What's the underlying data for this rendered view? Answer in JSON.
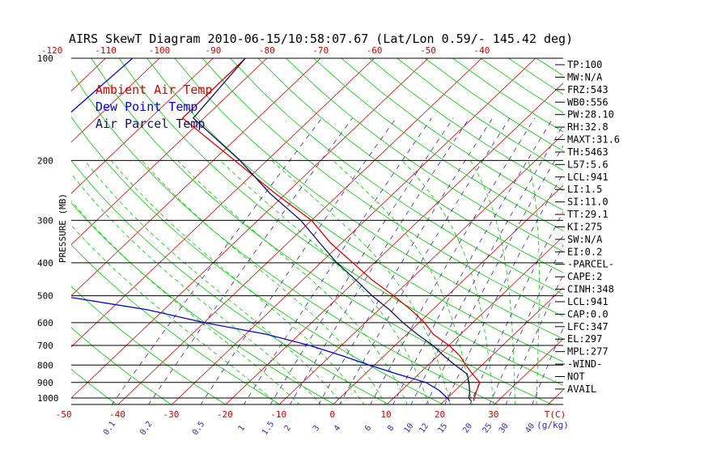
{
  "chart_data": {
    "type": "line",
    "title": "AIRS SkewT Diagram 2010-06-15/10:58:07.67 (Lat/Lon 0.59/- 145.42 deg)",
    "ylabel": "PRESSURE (MB)",
    "xlabel_suffix": "T(C)",
    "mixing_ratio_unit": "(g/kg)",
    "ylim": [
      1050,
      100
    ],
    "y_scale": "log",
    "pressure_ticks": [
      100,
      200,
      300,
      400,
      500,
      600,
      700,
      800,
      900,
      1000
    ],
    "temp_ticks_top": [
      -120,
      -110,
      -100,
      -90,
      -80,
      -70,
      -60,
      -50,
      -40
    ],
    "temp_ticks_bottom": [
      -50,
      -40,
      -30,
      -20,
      -10,
      0,
      10,
      20,
      30
    ],
    "mixing_ratio_labels": [
      "0.1",
      "0.2",
      "0.5",
      "1",
      "1.5",
      "2",
      "3",
      "4",
      "6",
      "8",
      "10",
      "12",
      "15",
      "20",
      "25",
      "30",
      "40"
    ],
    "colors": {
      "ambient": "#e00000",
      "dewpoint": "#0000e0",
      "parcel": "#101060",
      "isotherm": "#e00000",
      "dry_adiabat": "#00cc00",
      "moist_adiabat": "#00cc00",
      "mixing_ratio": "#4422aa",
      "isobar": "#000000",
      "axis_label": "#d00000"
    },
    "legend": {
      "placement": "top-left",
      "entries": [
        {
          "label": "Ambient Air Temp",
          "color": "#e00000"
        },
        {
          "label": "Dew Point Temp",
          "color": "#0000e0"
        },
        {
          "label": "Air Parcel Temp",
          "color": "#101060"
        }
      ]
    },
    "series": [
      {
        "name": "Ambient Air Temp",
        "points": [
          [
            100,
            -84
          ],
          [
            150,
            -84
          ],
          [
            200,
            -66
          ],
          [
            250,
            -52
          ],
          [
            300,
            -40
          ],
          [
            350,
            -32
          ],
          [
            400,
            -24
          ],
          [
            450,
            -17
          ],
          [
            500,
            -10
          ],
          [
            550,
            -4
          ],
          [
            600,
            1
          ],
          [
            650,
            5
          ],
          [
            700,
            10
          ],
          [
            750,
            14
          ],
          [
            800,
            17
          ],
          [
            850,
            20
          ],
          [
            900,
            23
          ],
          [
            950,
            24
          ],
          [
            1000,
            25
          ],
          [
            1020,
            25.5
          ]
        ]
      },
      {
        "name": "Dew Point Temp",
        "points": [
          [
            100,
            -105
          ],
          [
            150,
            -106
          ],
          [
            200,
            -104
          ],
          [
            250,
            -105
          ],
          [
            300,
            -106
          ],
          [
            350,
            -102
          ],
          [
            400,
            -98
          ],
          [
            450,
            -85
          ],
          [
            500,
            -72
          ],
          [
            550,
            -53
          ],
          [
            600,
            -40
          ],
          [
            650,
            -26
          ],
          [
            700,
            -16
          ],
          [
            750,
            -8
          ],
          [
            800,
            -1
          ],
          [
            850,
            6
          ],
          [
            900,
            13
          ],
          [
            950,
            17
          ],
          [
            1000,
            20
          ],
          [
            1020,
            21
          ]
        ]
      },
      {
        "name": "Air Parcel Temp",
        "points": [
          [
            100,
            -84
          ],
          [
            150,
            -82
          ],
          [
            200,
            -65
          ],
          [
            250,
            -53
          ],
          [
            300,
            -42
          ],
          [
            350,
            -34
          ],
          [
            400,
            -27
          ],
          [
            450,
            -20
          ],
          [
            500,
            -14
          ],
          [
            550,
            -8
          ],
          [
            600,
            -3
          ],
          [
            650,
            2
          ],
          [
            700,
            7
          ],
          [
            750,
            11
          ],
          [
            800,
            15
          ],
          [
            850,
            19
          ],
          [
            900,
            21
          ],
          [
            930,
            22
          ],
          [
            960,
            23
          ],
          [
            1000,
            24
          ],
          [
            1020,
            25
          ]
        ]
      }
    ],
    "indices": [
      "TP:100",
      "MW:N/A",
      "FRZ:543",
      "WB0:556",
      "PW:28.10",
      "RH:32.8",
      "MAXT:31.6",
      "TH:5463",
      "L57:5.6",
      "LCL:941",
      "LI:1.5",
      "SI:11.0",
      "TT:29.1",
      "KI:275",
      "SW:N/A",
      "EI:0.2",
      "-PARCEL-",
      "CAPE:2",
      "CINH:348",
      "LCL:941",
      "CAP:0.0",
      "LFC:347",
      "EL:297",
      "MPL:277",
      "-WIND-",
      "NOT",
      "AVAIL"
    ]
  }
}
